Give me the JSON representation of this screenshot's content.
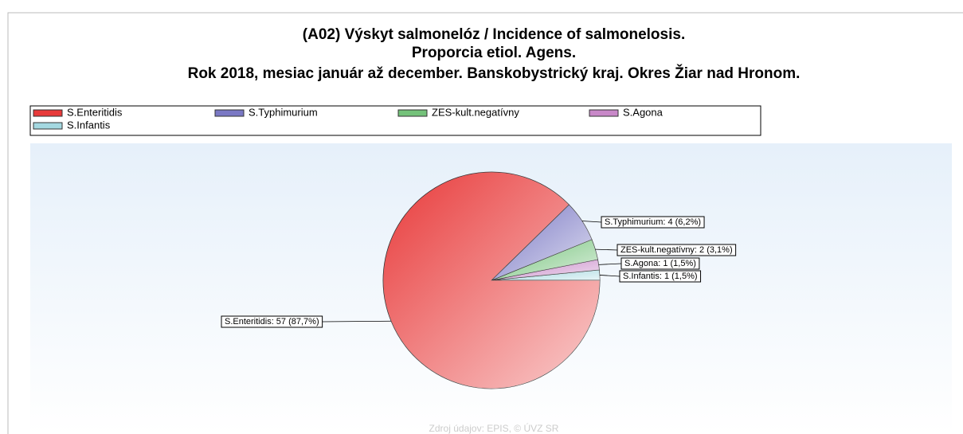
{
  "chart_data": {
    "type": "pie",
    "title": [
      "(A02) Výskyt salmonelóz / Incidence of salmonelosis.",
      "Proporcia etiol. Agens.",
      "Rok 2018, mesiac január až december. Banskobystrický kraj. Okres Žiar nad Hronom."
    ],
    "categories": [
      "S.Enteritidis",
      "S.Typhimurium",
      "ZES-kult.negatívny",
      "S.Agona",
      "S.Infantis"
    ],
    "values": [
      57,
      4,
      2,
      1,
      1
    ],
    "value_labels": [
      "S.Enteritidis: 57 (87,7%)",
      "S.Typhimurium: 4 (6,2%)",
      "ZES-kult.negatívny: 2 (3,1%)",
      "S.Agona: 1 (1,5%)",
      "S.Infantis: 1 (1,5%)"
    ],
    "colors": [
      "#e83a3a",
      "#7a78c4",
      "#74c27a",
      "#c888c8",
      "#a4d8e0"
    ],
    "legend": "top",
    "source": "Zdroj údajov: EPIS, © ÚVZ SR"
  }
}
